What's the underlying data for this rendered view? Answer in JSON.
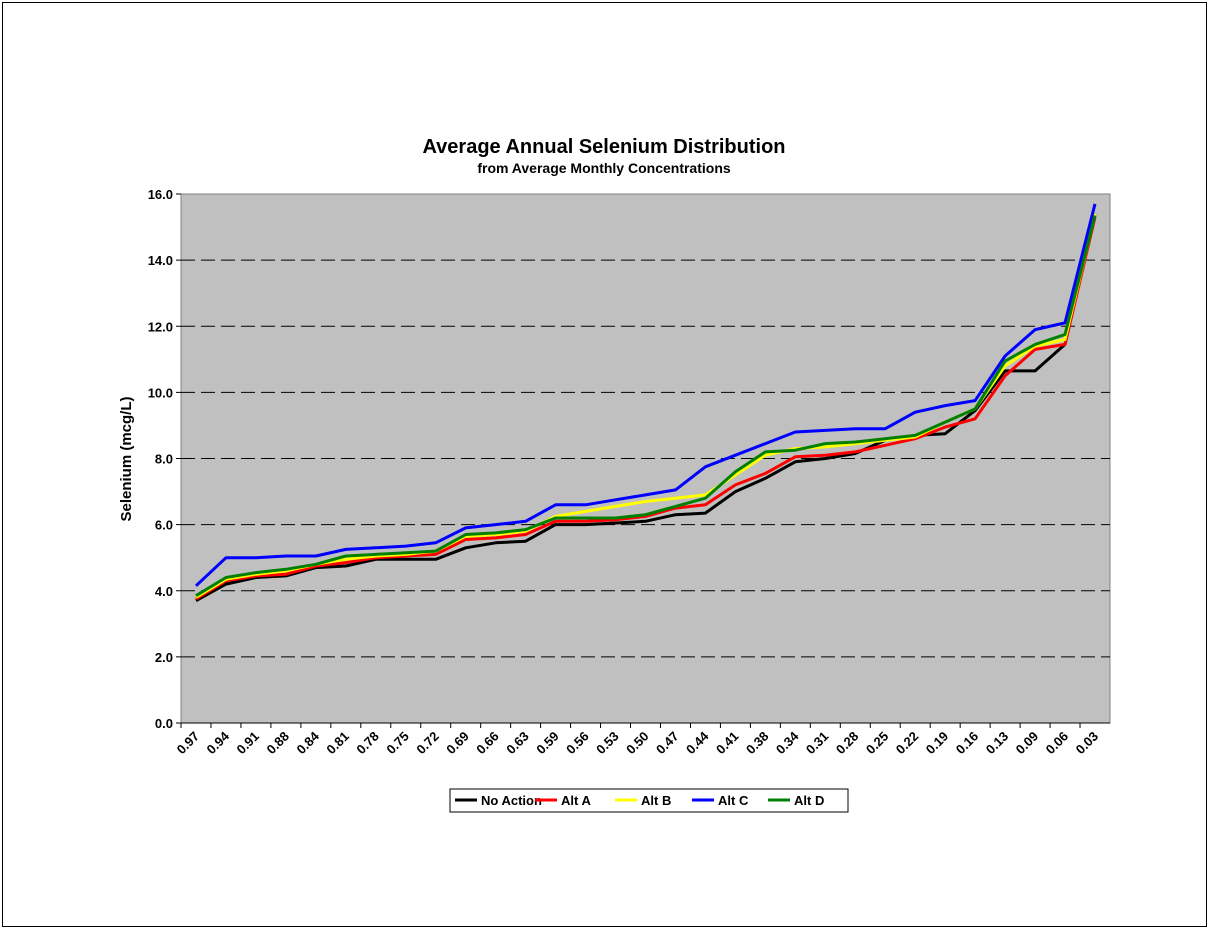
{
  "chart_data": {
    "type": "line",
    "title": "Average Annual Selenium Distribution",
    "subtitle": "from Average Monthly Concentrations",
    "xlabel": "",
    "ylabel": "Selenium (mcg/L)",
    "ylim": [
      0,
      16
    ],
    "yticks": [
      "0.0",
      "2.0",
      "4.0",
      "6.0",
      "8.0",
      "10.0",
      "12.0",
      "14.0",
      "16.0"
    ],
    "grid": "horizontal dashed",
    "legend_position": "bottom",
    "x": [
      "0.97",
      "0.94",
      "0.91",
      "0.88",
      "0.84",
      "0.81",
      "0.78",
      "0.75",
      "0.72",
      "0.69",
      "0.66",
      "0.63",
      "0.59",
      "0.56",
      "0.53",
      "0.50",
      "0.47",
      "0.44",
      "0.41",
      "0.38",
      "0.34",
      "0.31",
      "0.28",
      "0.25",
      "0.22",
      "0.19",
      "0.16",
      "0.13",
      "0.09",
      "0.06",
      "0.03"
    ],
    "series": [
      {
        "name": "No Action",
        "color": "#000000",
        "values": [
          3.7,
          4.2,
          4.4,
          4.45,
          4.7,
          4.75,
          4.95,
          4.95,
          4.95,
          5.3,
          5.45,
          5.5,
          6.0,
          6.0,
          6.05,
          6.1,
          6.3,
          6.35,
          7.0,
          7.4,
          7.9,
          8.0,
          8.15,
          8.55,
          8.7,
          8.75,
          9.45,
          10.65,
          10.65,
          11.45,
          15.4
        ]
      },
      {
        "name": "Alt A",
        "color": "#ff0000",
        "values": [
          3.75,
          4.3,
          4.45,
          4.5,
          4.75,
          4.85,
          5.0,
          5.05,
          5.1,
          5.55,
          5.6,
          5.7,
          6.1,
          6.1,
          6.15,
          6.25,
          6.5,
          6.6,
          7.2,
          7.55,
          8.05,
          8.1,
          8.2,
          8.4,
          8.6,
          8.95,
          9.2,
          10.5,
          11.3,
          11.45,
          15.3
        ]
      },
      {
        "name": "Alt B",
        "color": "#ffff00",
        "values": [
          3.8,
          4.35,
          4.5,
          4.6,
          4.8,
          4.95,
          5.05,
          5.1,
          5.2,
          5.65,
          5.7,
          5.8,
          6.25,
          6.4,
          6.55,
          6.7,
          6.8,
          6.9,
          7.5,
          8.1,
          8.3,
          8.35,
          8.45,
          8.55,
          8.65,
          9.1,
          9.5,
          10.8,
          11.4,
          11.6,
          15.4
        ]
      },
      {
        "name": "Alt C",
        "color": "#0000ff",
        "values": [
          4.15,
          5.0,
          5.0,
          5.05,
          5.05,
          5.25,
          5.3,
          5.35,
          5.45,
          5.9,
          6.0,
          6.1,
          6.6,
          6.6,
          6.75,
          6.9,
          7.05,
          7.75,
          8.1,
          8.45,
          8.8,
          8.85,
          8.9,
          8.9,
          9.4,
          9.6,
          9.75,
          11.1,
          11.9,
          12.1,
          15.7
        ]
      },
      {
        "name": "Alt D",
        "color": "#008000",
        "values": [
          3.85,
          4.4,
          4.55,
          4.65,
          4.8,
          5.05,
          5.1,
          5.15,
          5.2,
          5.7,
          5.75,
          5.85,
          6.2,
          6.2,
          6.2,
          6.3,
          6.55,
          6.8,
          7.6,
          8.2,
          8.25,
          8.45,
          8.5,
          8.6,
          8.7,
          9.1,
          9.5,
          10.95,
          11.45,
          11.75,
          15.35
        ]
      }
    ]
  }
}
